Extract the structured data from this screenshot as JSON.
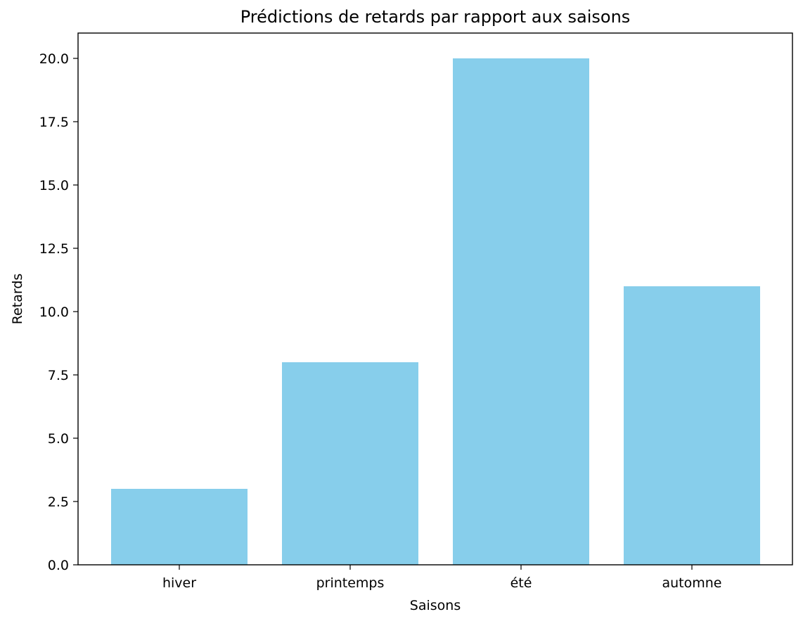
{
  "chart_data": {
    "type": "bar",
    "title": "Prédictions de retards par rapport aux saisons",
    "xlabel": "Saisons",
    "ylabel": "Retards",
    "categories": [
      "hiver",
      "printemps",
      "été",
      "automne"
    ],
    "values": [
      3,
      8,
      20,
      11
    ],
    "ylim": [
      0,
      21
    ],
    "yticks": [
      "0.0",
      "2.5",
      "5.0",
      "7.5",
      "10.0",
      "12.5",
      "15.0",
      "17.5",
      "20.0"
    ],
    "bar_color": "#87ceeb",
    "grid": false,
    "legend": "none"
  }
}
